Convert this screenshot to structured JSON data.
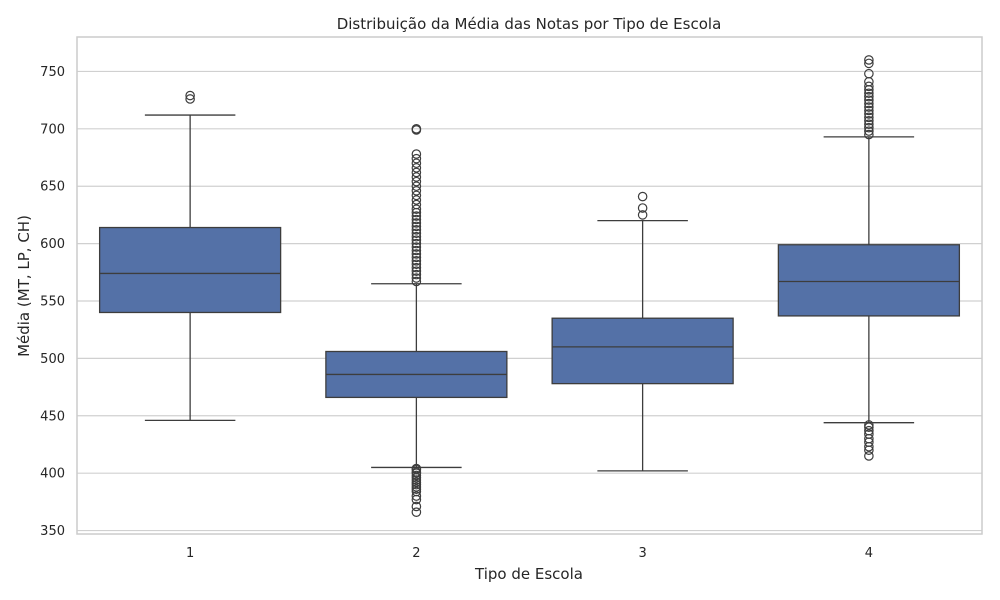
{
  "chart_data": {
    "type": "box",
    "title": "Distribuição da Média das Notas por Tipo de Escola",
    "xlabel": "Tipo de Escola",
    "ylabel": "Média (MT, LP, CH)",
    "ylim": [
      347,
      780
    ],
    "yticks": [
      350,
      400,
      450,
      500,
      550,
      600,
      650,
      700,
      750
    ],
    "grid": true,
    "colors": {
      "box": "#5471a7",
      "line": "#3d3d3d",
      "grid": "#d0d0d0",
      "frame": "#cccccc",
      "text": "#262626"
    },
    "categories": [
      "1",
      "2",
      "3",
      "4"
    ],
    "boxes": [
      {
        "category": "1",
        "whisker_low": 446,
        "q1": 540,
        "median": 574,
        "q3": 614,
        "whisker_high": 712,
        "outliers": [
          726,
          729
        ]
      },
      {
        "category": "2",
        "whisker_low": 405,
        "q1": 466,
        "median": 486,
        "q3": 506,
        "whisker_high": 565,
        "outliers": [
          366,
          371,
          377,
          380,
          384,
          386,
          388,
          390,
          392,
          394,
          396,
          398,
          400,
          401,
          403,
          404,
          567,
          570,
          573,
          576,
          579,
          582,
          585,
          588,
          591,
          594,
          597,
          600,
          603,
          606,
          609,
          612,
          615,
          618,
          621,
          624,
          627,
          630,
          634,
          638,
          642,
          646,
          650,
          654,
          658,
          662,
          666,
          670,
          674,
          678,
          699,
          700
        ]
      },
      {
        "category": "3",
        "whisker_low": 402,
        "q1": 478,
        "median": 510,
        "q3": 535,
        "whisker_high": 620,
        "outliers": [
          625,
          631,
          641
        ]
      },
      {
        "category": "4",
        "whisker_low": 444,
        "q1": 537,
        "median": 567,
        "q3": 599,
        "whisker_high": 693,
        "outliers": [
          415,
          420,
          423,
          427,
          430,
          434,
          437,
          440,
          442,
          695,
          698,
          701,
          704,
          707,
          710,
          713,
          716,
          719,
          722,
          725,
          728,
          731,
          734,
          737,
          741,
          748,
          757,
          760
        ]
      }
    ]
  }
}
